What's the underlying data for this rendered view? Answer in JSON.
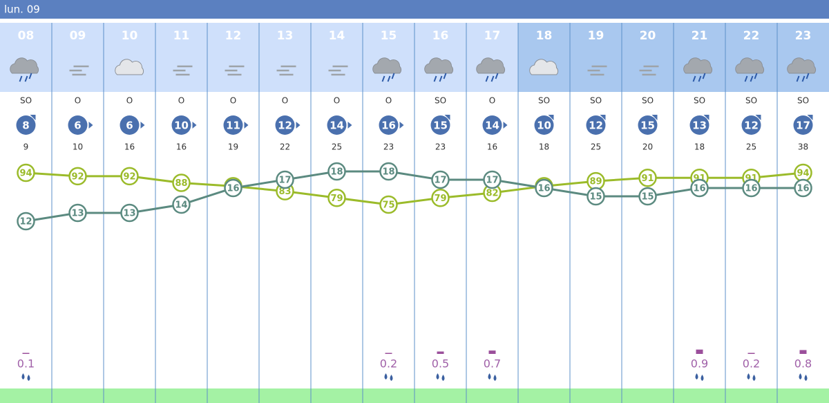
{
  "header": {
    "title": "lun. 09"
  },
  "hours": [
    {
      "hour": "08",
      "icon": "storm",
      "dark": false,
      "wind_dir": "SO",
      "wind": 8,
      "gust": 9,
      "temp": 12,
      "humidity": 94,
      "precip": 0.1
    },
    {
      "hour": "09",
      "icon": "fog",
      "dark": false,
      "wind_dir": "O",
      "wind": 6,
      "gust": 10,
      "temp": 13,
      "humidity": 92,
      "precip": null
    },
    {
      "hour": "10",
      "icon": "cloud",
      "dark": false,
      "wind_dir": "O",
      "wind": 6,
      "gust": 16,
      "temp": 13,
      "humidity": 92,
      "precip": null
    },
    {
      "hour": "11",
      "icon": "fog",
      "dark": false,
      "wind_dir": "O",
      "wind": 10,
      "gust": 16,
      "temp": 14,
      "humidity": 88,
      "precip": null
    },
    {
      "hour": "12",
      "icon": "fog",
      "dark": false,
      "wind_dir": "O",
      "wind": 11,
      "gust": 19,
      "temp": 16,
      "humidity": 86,
      "precip": null
    },
    {
      "hour": "13",
      "icon": "fog",
      "dark": false,
      "wind_dir": "O",
      "wind": 12,
      "gust": 22,
      "temp": 17,
      "humidity": 83,
      "precip": null
    },
    {
      "hour": "14",
      "icon": "fog",
      "dark": false,
      "wind_dir": "O",
      "wind": 14,
      "gust": 25,
      "temp": 18,
      "humidity": 79,
      "precip": null
    },
    {
      "hour": "15",
      "icon": "storm",
      "dark": false,
      "wind_dir": "O",
      "wind": 16,
      "gust": 23,
      "temp": 18,
      "humidity": 75,
      "precip": 0.2
    },
    {
      "hour": "16",
      "icon": "storm",
      "dark": false,
      "wind_dir": "SO",
      "wind": 15,
      "gust": 23,
      "temp": 17,
      "humidity": 79,
      "precip": 0.5
    },
    {
      "hour": "17",
      "icon": "storm",
      "dark": false,
      "wind_dir": "O",
      "wind": 14,
      "gust": 16,
      "temp": 17,
      "humidity": 82,
      "precip": 0.7
    },
    {
      "hour": "18",
      "icon": "cloud",
      "dark": true,
      "wind_dir": "SO",
      "wind": 10,
      "gust": 18,
      "temp": 16,
      "humidity": 86,
      "precip": null
    },
    {
      "hour": "19",
      "icon": "fog",
      "dark": true,
      "wind_dir": "SO",
      "wind": 12,
      "gust": 25,
      "temp": 15,
      "humidity": 89,
      "precip": null
    },
    {
      "hour": "20",
      "icon": "fog",
      "dark": true,
      "wind_dir": "SO",
      "wind": 15,
      "gust": 20,
      "temp": 15,
      "humidity": 91,
      "precip": null
    },
    {
      "hour": "21",
      "icon": "storm",
      "dark": true,
      "wind_dir": "SO",
      "wind": 13,
      "gust": 18,
      "temp": 16,
      "humidity": 91,
      "precip": 0.9
    },
    {
      "hour": "22",
      "icon": "storm",
      "dark": true,
      "wind_dir": "SO",
      "wind": 12,
      "gust": 25,
      "temp": 16,
      "humidity": 91,
      "precip": 0.2
    },
    {
      "hour": "23",
      "icon": "storm",
      "dark": true,
      "wind_dir": "SO",
      "wind": 17,
      "gust": 38,
      "temp": 16,
      "humidity": 94,
      "precip": 0.8
    }
  ]
}
